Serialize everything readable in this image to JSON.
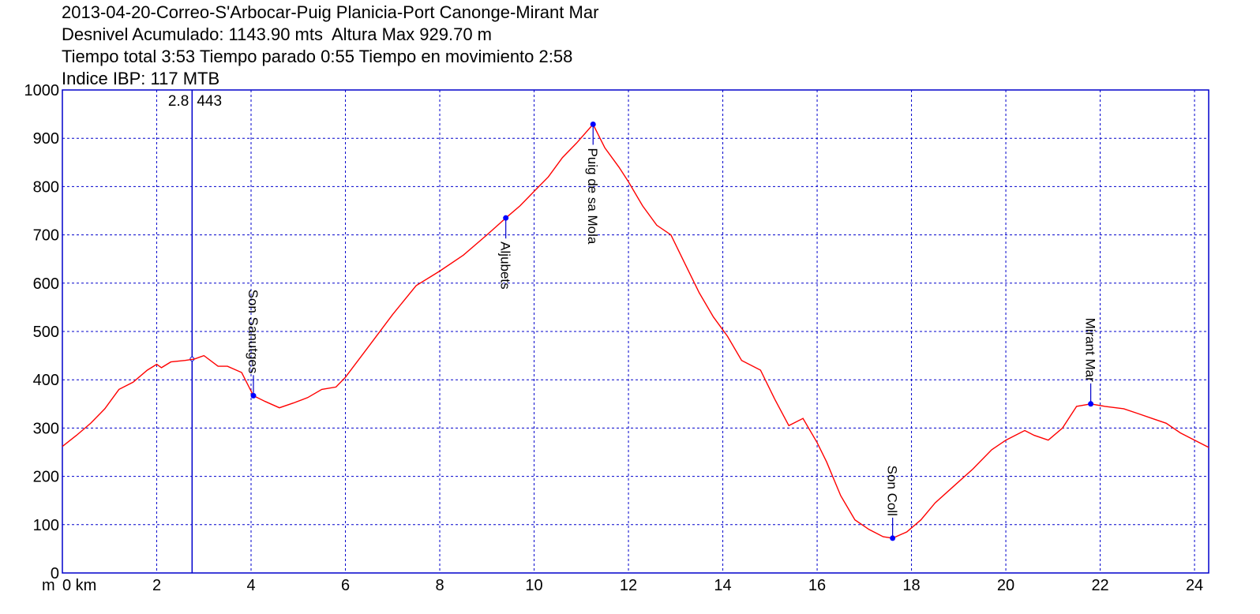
{
  "header": {
    "line1": "2013-04-20-Correo-S'Arbocar-Puig Planicia-Port Canonge-Mirant Mar",
    "line2": "Desnivel Acumulado: 1143.90 mts  Altura Max 929.70 m",
    "line3": "Tiempo total 3:53 Tiempo parado 0:55 Tiempo en movimiento 2:58",
    "line4": "Indice IBP: 117 MTB"
  },
  "chart_data": {
    "type": "line",
    "xlim": [
      0,
      24.3
    ],
    "ylim": [
      0,
      1000
    ],
    "x_ticks": [
      2,
      4,
      6,
      8,
      10,
      12,
      14,
      16,
      18,
      20,
      22,
      24
    ],
    "x_tick_labels": [
      "2",
      "4",
      "6",
      "8",
      "10",
      "12",
      "14",
      "16",
      "18",
      "20",
      "22",
      "24"
    ],
    "x_first_label": "0 km",
    "y_unit_label": "m",
    "y_ticks": [
      0,
      100,
      200,
      300,
      400,
      500,
      600,
      700,
      800,
      900,
      1000
    ],
    "y_tick_labels": [
      "0",
      "100",
      "200",
      "300",
      "400",
      "500",
      "600",
      "700",
      "800",
      "900",
      "1000"
    ],
    "grid": true,
    "line_color": "#ff0000",
    "grid_color": "#0000cc",
    "series": [
      {
        "x": [
          0,
          0.3,
          0.6,
          0.9,
          1.2,
          1.5,
          1.8,
          2.0,
          2.1,
          2.3,
          2.6,
          2.8,
          3.0,
          3.3,
          3.5,
          3.8,
          4.05,
          4.3,
          4.6,
          4.9,
          5.2,
          5.5,
          5.8,
          6.0,
          6.5,
          7.0,
          7.5,
          8.0,
          8.5,
          9.0,
          9.4,
          9.7,
          10.0,
          10.3,
          10.6,
          10.9,
          11.25,
          11.5,
          11.8,
          12.0,
          12.3,
          12.6,
          12.9,
          13.2,
          13.5,
          13.8,
          14.1,
          14.4,
          14.8,
          15.1,
          15.4,
          15.7,
          16.0,
          16.2,
          16.5,
          16.8,
          17.1,
          17.4,
          17.6,
          17.9,
          18.2,
          18.5,
          18.9,
          19.3,
          19.7,
          20.0,
          20.4,
          20.6,
          20.9,
          21.2,
          21.5,
          21.8,
          22.1,
          22.5,
          22.8,
          23.1,
          23.4,
          23.7,
          24.0,
          24.3
        ],
        "y": [
          262,
          285,
          310,
          340,
          380,
          395,
          420,
          432,
          425,
          437,
          440,
          443,
          450,
          428,
          428,
          415,
          367,
          355,
          342,
          352,
          363,
          380,
          385,
          405,
          470,
          535,
          595,
          625,
          658,
          700,
          735,
          760,
          790,
          820,
          860,
          890,
          929,
          880,
          840,
          810,
          760,
          720,
          700,
          640,
          580,
          530,
          490,
          440,
          420,
          360,
          305,
          320,
          270,
          230,
          160,
          110,
          90,
          75,
          72,
          85,
          110,
          145,
          180,
          215,
          255,
          275,
          295,
          285,
          275,
          300,
          345,
          350,
          345,
          340,
          330,
          320,
          310,
          290,
          275,
          260
        ]
      }
    ],
    "waypoints": [
      {
        "name": "Son Sanutges",
        "x": 4.05,
        "y": 367
      },
      {
        "name": "Aljubets",
        "x": 9.4,
        "y": 735
      },
      {
        "name": "Puig de sa Mola",
        "x": 11.25,
        "y": 929
      },
      {
        "name": "Son Coll",
        "x": 17.6,
        "y": 72
      },
      {
        "name": "Mirant Mar",
        "x": 21.8,
        "y": 350
      }
    ],
    "cursor": {
      "x": 2.75,
      "x_label": "2.8",
      "y_label": "443"
    }
  }
}
